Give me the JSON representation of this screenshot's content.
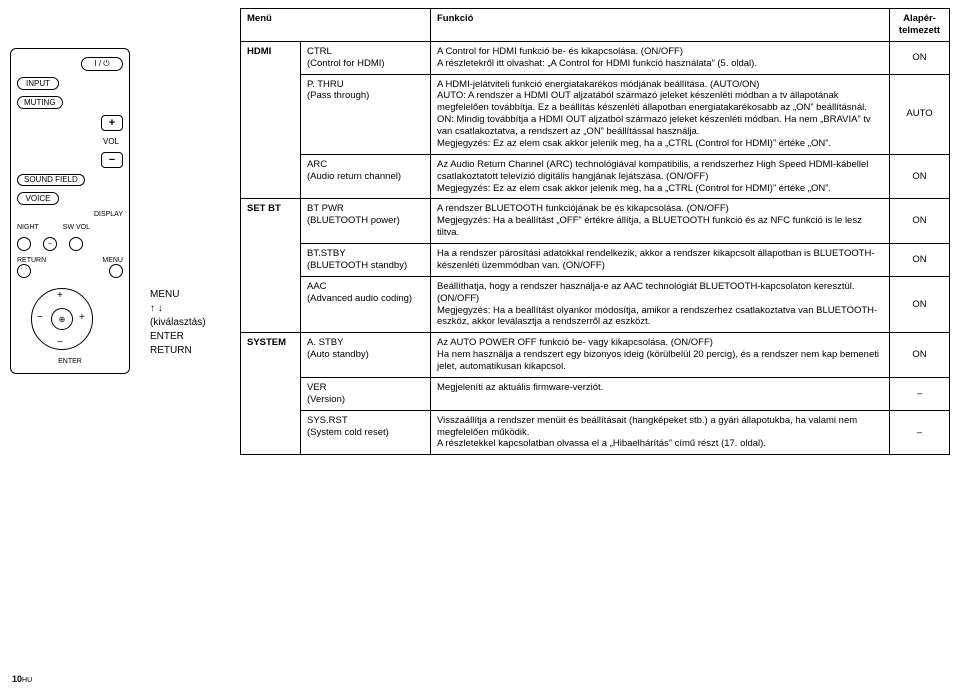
{
  "remote": {
    "power_label": "I / ⏻",
    "input": "INPUT",
    "muting": "MUTING",
    "plus": "+",
    "minus": "−",
    "vol": "VOL",
    "sound_field": "SOUND\nFIELD",
    "voice": "VOICE",
    "display": "DISPLAY",
    "night": "NIGHT",
    "sw_vol": "SW VOL",
    "return": "RETURN",
    "menu": "MENU",
    "enter": "ENTER",
    "dpad_plus": "+",
    "dpad_minus": "−",
    "dpad_center": "⊕"
  },
  "navlabel": {
    "line1": "MENU",
    "line2": "↑ ↓",
    "line3": "(kiválasztás)",
    "line4": "ENTER",
    "line5": "RETURN"
  },
  "header": {
    "menu": "Menü",
    "func": "Funkció",
    "def": "Alapér-\ntelmezett"
  },
  "rows": [
    {
      "menu": "HDMI",
      "sub_main": "CTRL",
      "sub_paren": "(Control for HDMI)",
      "func": "A Control for HDMI funkció be- és kikapcsolása. (ON/OFF)\nA részletekről itt olvashat: „A Control for HDMI funkció használata” (5. oldal).",
      "def": "ON"
    },
    {
      "menu": "",
      "sub_main": "P. THRU",
      "sub_paren": "(Pass through)",
      "func": "A HDMI-jelátviteli funkció energiatakarékos módjának beállítása. (AUTO/ON)\nAUTO: A rendszer a HDMI OUT aljzatából származó jeleket készenléti módban a tv állapotának megfelelően továbbítja. Ez a beállítás készenléti állapotban energiatakarékosabb az „ON” beállításnál.\nON: Mindig továbbítja a HDMI OUT aljzatból származó jeleket készenléti módban. Ha nem „BRAVIA” tv van csatlakoztatva, a rendszert az „ON” beállítással használja.\nMegjegyzés: Ez az elem csak akkor jelenik meg, ha a „CTRL (Control for HDMI)” értéke „ON”.",
      "def": "AUTO"
    },
    {
      "menu": "",
      "sub_main": "ARC",
      "sub_paren": "(Audio return channel)",
      "func": "Az Audio Return Channel (ARC) technológiával kompatibilis, a rendszerhez High Speed HDMI-kábellel csatlakoztatott televízió digitális hangjának lejátszása. (ON/OFF)\nMegjegyzés: Ez az elem csak akkor jelenik meg, ha a „CTRL (Control for HDMI)” értéke „ON”.",
      "def": "ON"
    },
    {
      "menu": "SET BT",
      "sub_main": "BT PWR",
      "sub_paren": "(BLUETOOTH power)",
      "func": "A rendszer BLUETOOTH funkciójának be és kikapcsolása. (ON/OFF)\nMegjegyzés: Ha a beállítást „OFF” értékre állítja, a BLUETOOTH funkció és az NFC funkció is le lesz tiltva.",
      "def": "ON"
    },
    {
      "menu": "",
      "sub_main": "BT.STBY",
      "sub_paren": "(BLUETOOTH standby)",
      "func": "Ha a rendszer párosítási adatokkal rendelkezik, akkor a rendszer kikapcsolt állapotban is BLUETOOTH-készenléti üzemmódban van. (ON/OFF)",
      "def": "ON"
    },
    {
      "menu": "",
      "sub_main": "AAC",
      "sub_paren": "(Advanced audio coding)",
      "func": "Beállíthatja, hogy a rendszer használja-e az AAC technológiát BLUETOOTH-kapcsolaton keresztül. (ON/OFF)\nMegjegyzés: Ha a beállítást olyankor módosítja, amikor a rendszerhez csatlakoztatva van BLUETOOTH-eszköz, akkor leválasztja a rendszerről az eszközt.",
      "def": "ON"
    },
    {
      "menu": "SYSTEM",
      "sub_main": "A. STBY",
      "sub_paren": "(Auto standby)",
      "func": "Az AUTO POWER OFF funkció be- vagy kikapcsolása. (ON/OFF)\nHa nem használja a rendszert egy bizonyos ideig (körülbelül 20 percig), és a rendszer nem kap bemeneti jelet, automatikusan kikapcsol.",
      "def": "ON"
    },
    {
      "menu": "",
      "sub_main": "VER",
      "sub_paren": "(Version)",
      "func": "Megjeleníti az aktuális firmware-verziót.",
      "def": "–"
    },
    {
      "menu": "",
      "sub_main": "SYS.RST",
      "sub_paren": "(System cold reset)",
      "func": "Visszaállítja a rendszer menüit és beállításait (hangképeket stb.) a gyári állapotukba, ha valami nem megfelelően működik.\nA részletekkel kapcsolatban olvassa el a „Hibaelhárítás” című részt (17. oldal).",
      "def": "–"
    }
  ],
  "footer": {
    "page": "10",
    "hu": "HU"
  }
}
